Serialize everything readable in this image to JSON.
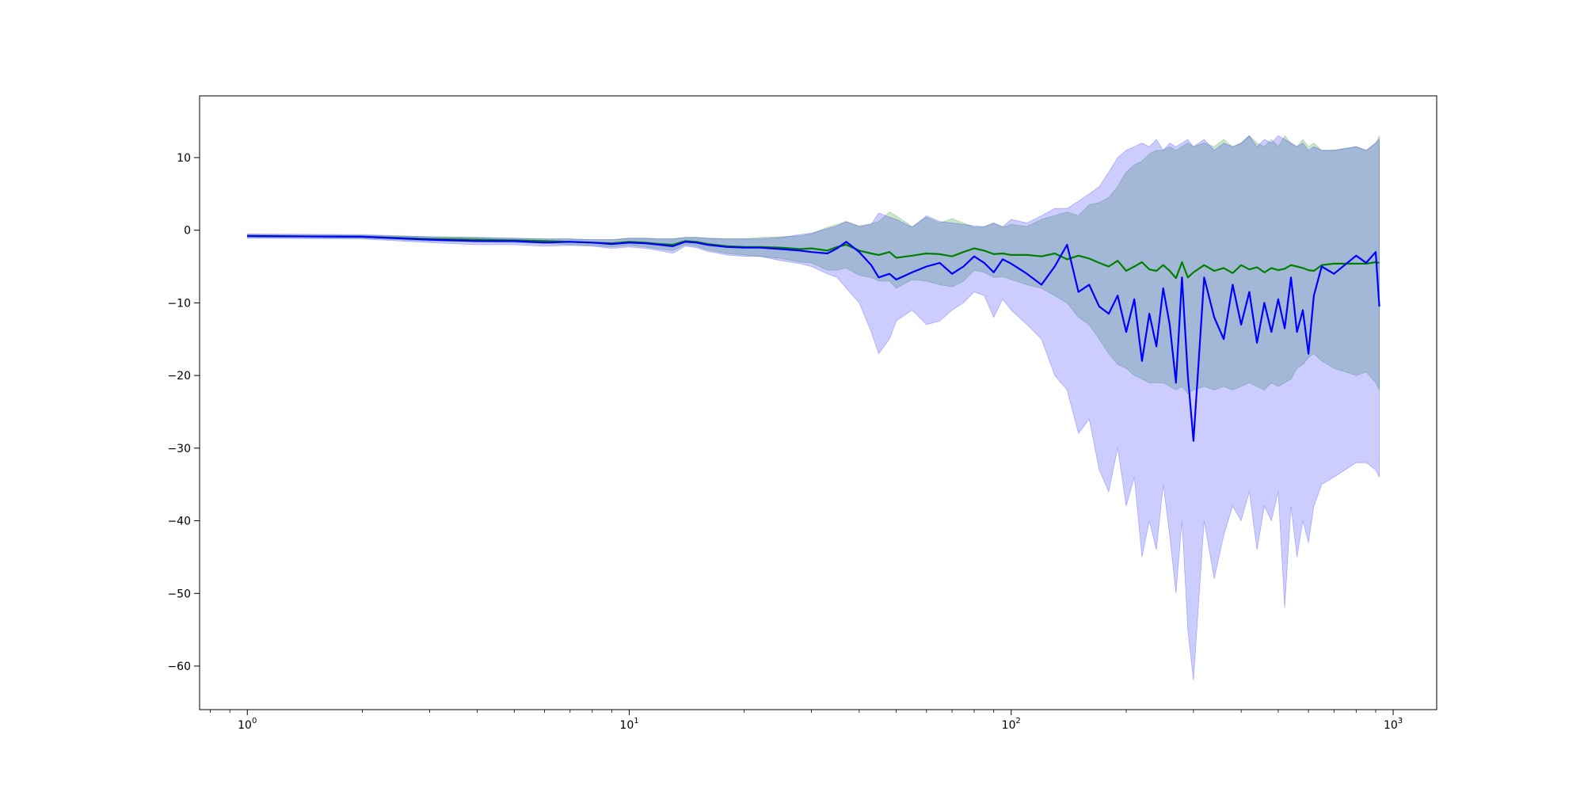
{
  "chart_data": {
    "type": "line",
    "title": "",
    "xlabel": "",
    "ylabel": "",
    "x_scale": "log",
    "xlim": [
      0.75,
      1300
    ],
    "ylim": [
      -66,
      18.5
    ],
    "grid": false,
    "x_ticks": [
      {
        "value": 1,
        "base": "10",
        "exp": "0"
      },
      {
        "value": 10,
        "base": "10",
        "exp": "1"
      },
      {
        "value": 100,
        "base": "10",
        "exp": "2"
      },
      {
        "value": 1000,
        "base": "10",
        "exp": "3"
      }
    ],
    "y_ticks": [
      {
        "value": 10,
        "label": "10"
      },
      {
        "value": 0,
        "label": "0"
      },
      {
        "value": -10,
        "label": "−10"
      },
      {
        "value": -20,
        "label": "−20"
      },
      {
        "value": -30,
        "label": "−30"
      },
      {
        "value": -40,
        "label": "−40"
      },
      {
        "value": -50,
        "label": "−50"
      },
      {
        "value": -60,
        "label": "−60"
      }
    ],
    "series": [
      {
        "color": "#008000",
        "band_color": "#008000",
        "x": [
          1,
          2,
          3,
          4,
          5,
          6,
          7,
          8,
          9,
          10,
          11,
          12,
          13,
          14,
          15,
          16,
          18,
          20,
          22,
          25,
          28,
          30,
          33,
          35,
          37,
          40,
          43,
          45,
          48,
          50,
          55,
          60,
          65,
          70,
          75,
          80,
          85,
          90,
          95,
          100,
          110,
          120,
          130,
          140,
          150,
          160,
          170,
          180,
          190,
          200,
          210,
          220,
          230,
          240,
          250,
          260,
          270,
          280,
          290,
          300,
          320,
          340,
          360,
          380,
          400,
          420,
          440,
          460,
          480,
          500,
          520,
          540,
          560,
          580,
          600,
          620,
          650,
          700,
          800,
          850,
          900,
          920
        ],
        "y": [
          -0.8,
          -0.9,
          -1.2,
          -1.3,
          -1.4,
          -1.5,
          -1.6,
          -1.7,
          -1.8,
          -1.6,
          -1.7,
          -1.9,
          -2.0,
          -1.5,
          -1.6,
          -1.9,
          -2.2,
          -2.3,
          -2.3,
          -2.4,
          -2.6,
          -2.5,
          -2.8,
          -2.3,
          -2.0,
          -2.8,
          -3.2,
          -3.4,
          -3.0,
          -3.8,
          -3.5,
          -3.2,
          -3.3,
          -3.6,
          -3.0,
          -2.5,
          -2.8,
          -3.3,
          -3.2,
          -3.4,
          -3.4,
          -3.6,
          -3.2,
          -4.0,
          -3.5,
          -3.9,
          -4.5,
          -5.0,
          -4.2,
          -5.6,
          -5.0,
          -4.4,
          -5.4,
          -5.6,
          -4.8,
          -5.6,
          -6.6,
          -4.4,
          -6.5,
          -5.8,
          -4.8,
          -5.6,
          -5.2,
          -5.9,
          -4.8,
          -5.4,
          -5.1,
          -5.8,
          -5.2,
          -5.5,
          -5.3,
          -4.8,
          -5.0,
          -5.2,
          -5.5,
          -5.6,
          -4.8,
          -4.6,
          -4.6,
          -4.6,
          -4.4,
          -4.5
        ],
        "upper": [
          -0.6,
          -0.7,
          -0.9,
          -1.0,
          -1.1,
          -1.2,
          -1.2,
          -1.3,
          -1.3,
          -1.1,
          -1.1,
          -1.2,
          -1.2,
          -1.0,
          -1.0,
          -1.1,
          -1.2,
          -1.2,
          -1.0,
          -0.9,
          -0.8,
          -0.5,
          0.4,
          0.8,
          1.2,
          0.6,
          0.9,
          1.2,
          2.5,
          2.0,
          0.5,
          1.8,
          1.0,
          1.6,
          1.0,
          0.4,
          0.5,
          1.0,
          0.4,
          0.8,
          0.5,
          1.5,
          2.0,
          2.5,
          2.0,
          3.5,
          3.8,
          4.5,
          6.0,
          8.0,
          9.0,
          9.5,
          10.5,
          11.0,
          11.0,
          11.5,
          11.0,
          11.5,
          12.0,
          11.5,
          12.0,
          11.5,
          12.5,
          11.5,
          12.0,
          13.0,
          12.0,
          11.5,
          12.5,
          11.5,
          13.0,
          12.0,
          11.5,
          12.5,
          11.5,
          12.0,
          11.0,
          11.0,
          11.5,
          11.0,
          12.0,
          13.0
        ],
        "lower": [
          -1.0,
          -1.1,
          -1.5,
          -1.6,
          -1.7,
          -1.8,
          -2.0,
          -2.1,
          -2.3,
          -2.1,
          -2.3,
          -2.6,
          -2.8,
          -2.0,
          -2.2,
          -2.7,
          -3.2,
          -3.4,
          -3.6,
          -3.9,
          -4.4,
          -4.5,
          -5.5,
          -5.5,
          -5.2,
          -6.2,
          -6.5,
          -7.0,
          -7.0,
          -8.0,
          -6.8,
          -7.0,
          -7.5,
          -7.8,
          -7.0,
          -5.5,
          -5.8,
          -6.5,
          -6.4,
          -6.8,
          -7.5,
          -8.0,
          -9.0,
          -10.0,
          -12.0,
          -13.0,
          -15.0,
          -17.0,
          -18.5,
          -19.0,
          -20.0,
          -20.5,
          -21.0,
          -21.0,
          -21.0,
          -21.5,
          -22.0,
          -21.5,
          -22.5,
          -22.0,
          -21.5,
          -22.0,
          -21.5,
          -22.0,
          -21.5,
          -21.0,
          -21.5,
          -22.0,
          -21.0,
          -21.5,
          -21.0,
          -20.5,
          -19.0,
          -18.5,
          -17.5,
          -17.0,
          -18.0,
          -19.0,
          -20.0,
          -19.5,
          -21.0,
          -22.0
        ]
      },
      {
        "color": "#0000ff",
        "band_color": "#0000ff",
        "x": [
          1,
          2,
          3,
          4,
          5,
          6,
          7,
          8,
          9,
          10,
          11,
          12,
          13,
          14,
          15,
          16,
          18,
          20,
          22,
          25,
          28,
          30,
          33,
          35,
          37,
          40,
          43,
          45,
          48,
          50,
          55,
          60,
          65,
          70,
          75,
          80,
          85,
          90,
          95,
          100,
          110,
          120,
          130,
          140,
          150,
          160,
          170,
          180,
          190,
          200,
          210,
          220,
          230,
          240,
          250,
          260,
          270,
          280,
          290,
          300,
          320,
          340,
          360,
          380,
          400,
          420,
          440,
          460,
          480,
          500,
          520,
          540,
          560,
          580,
          600,
          620,
          650,
          700,
          800,
          850,
          900,
          920
        ],
        "y": [
          -0.8,
          -0.9,
          -1.3,
          -1.5,
          -1.5,
          -1.7,
          -1.6,
          -1.7,
          -1.9,
          -1.7,
          -1.8,
          -2.0,
          -2.2,
          -1.6,
          -1.7,
          -2.0,
          -2.3,
          -2.4,
          -2.4,
          -2.6,
          -2.8,
          -3.0,
          -3.2,
          -2.5,
          -1.6,
          -3.0,
          -4.8,
          -6.5,
          -6.0,
          -6.8,
          -5.8,
          -5.0,
          -4.5,
          -6.0,
          -5.0,
          -3.6,
          -4.5,
          -5.8,
          -4.0,
          -4.6,
          -6.0,
          -7.5,
          -5.0,
          -2.0,
          -8.5,
          -7.5,
          -10.5,
          -11.5,
          -9.0,
          -14.0,
          -9.5,
          -18.0,
          -11.5,
          -16.0,
          -8.0,
          -13.0,
          -21.0,
          -6.5,
          -20.0,
          -29.0,
          -6.5,
          -12.0,
          -15.0,
          -7.5,
          -13.0,
          -8.5,
          -15.5,
          -10.0,
          -14.0,
          -9.5,
          -13.5,
          -6.5,
          -14.0,
          -11.0,
          -17.0,
          -9.0,
          -5.0,
          -6.0,
          -3.5,
          -4.5,
          -3.0,
          -10.5
        ],
        "upper": [
          -0.5,
          -0.6,
          -0.9,
          -1.0,
          -1.1,
          -1.2,
          -1.2,
          -1.3,
          -1.3,
          -1.1,
          -1.1,
          -1.2,
          -1.2,
          -1.0,
          -1.0,
          -1.1,
          -1.2,
          -1.2,
          -1.2,
          -1.0,
          -0.6,
          -0.4,
          0.2,
          0.6,
          1.2,
          0.5,
          0.8,
          2.4,
          1.8,
          1.5,
          0.4,
          2.0,
          1.2,
          1.0,
          0.8,
          0.6,
          0.5,
          1.0,
          0.5,
          1.5,
          1.0,
          2.0,
          3.0,
          3.0,
          4.0,
          5.0,
          6.0,
          8.0,
          10.0,
          11.0,
          11.5,
          12.0,
          11.5,
          12.5,
          11.0,
          12.0,
          11.5,
          12.0,
          12.5,
          11.5,
          12.5,
          11.0,
          12.0,
          11.5,
          12.0,
          13.0,
          11.5,
          12.5,
          12.0,
          13.0,
          12.5,
          12.0,
          11.5,
          12.0,
          11.0,
          11.5,
          11.0,
          11.0,
          11.5,
          11.0,
          12.0,
          12.5
        ],
        "lower": [
          -1.1,
          -1.2,
          -1.7,
          -2.0,
          -2.0,
          -2.2,
          -2.1,
          -2.2,
          -2.5,
          -2.3,
          -2.5,
          -2.8,
          -3.2,
          -2.2,
          -2.4,
          -2.9,
          -3.4,
          -3.6,
          -3.6,
          -4.2,
          -4.6,
          -5.0,
          -6.0,
          -6.5,
          -8.0,
          -10.0,
          -14.0,
          -17.0,
          -15.0,
          -12.5,
          -11.0,
          -13.0,
          -12.5,
          -11.0,
          -10.0,
          -8.5,
          -9.0,
          -12.0,
          -9.5,
          -11.0,
          -13.0,
          -15.0,
          -20.0,
          -22.0,
          -28.0,
          -26.0,
          -33.0,
          -36.0,
          -30.0,
          -38.0,
          -34.0,
          -45.0,
          -40.0,
          -44.0,
          -35.0,
          -42.0,
          -50.0,
          -40.0,
          -55.0,
          -62.0,
          -40.0,
          -48.0,
          -42.0,
          -38.0,
          -40.0,
          -36.0,
          -44.0,
          -38.0,
          -40.0,
          -36.0,
          -52.0,
          -38.0,
          -45.0,
          -40.0,
          -43.0,
          -38.0,
          -35.0,
          -34.0,
          -32.0,
          -32.0,
          -33.0,
          -34.0
        ]
      }
    ]
  }
}
